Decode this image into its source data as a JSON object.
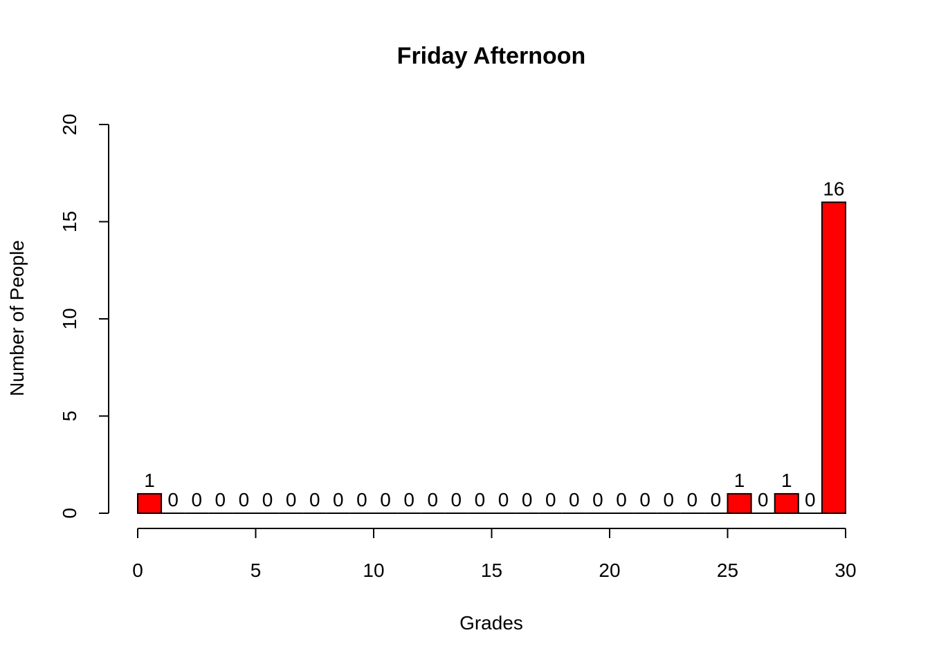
{
  "chart_data": {
    "type": "bar",
    "title": "Friday Afternoon",
    "xlabel": "Grades",
    "ylabel": "Number of People",
    "bin_width": 1,
    "bin_start": 0,
    "values": [
      1,
      0,
      0,
      0,
      0,
      0,
      0,
      0,
      0,
      0,
      0,
      0,
      0,
      0,
      0,
      0,
      0,
      0,
      0,
      0,
      0,
      0,
      0,
      0,
      0,
      1,
      0,
      1,
      0,
      16
    ],
    "bar_labels": [
      "1",
      "0",
      "0",
      "0",
      "0",
      "0",
      "0",
      "0",
      "0",
      "0",
      "0",
      "0",
      "0",
      "0",
      "0",
      "0",
      "0",
      "0",
      "0",
      "0",
      "0",
      "0",
      "0",
      "0",
      "0",
      "1",
      "0",
      "1",
      "0",
      "16"
    ],
    "xlim": [
      0,
      30
    ],
    "ylim": [
      0,
      20
    ],
    "x_ticks": [
      0,
      5,
      10,
      15,
      20,
      25,
      30
    ],
    "x_tick_labels": [
      "0",
      "5",
      "10",
      "15",
      "20",
      "25",
      "30"
    ],
    "y_ticks": [
      0,
      5,
      10,
      15,
      20
    ],
    "y_tick_labels": [
      "0",
      "5",
      "10",
      "15",
      "20"
    ],
    "bar_color": "#ff0000",
    "grid": false,
    "legend": "none"
  }
}
